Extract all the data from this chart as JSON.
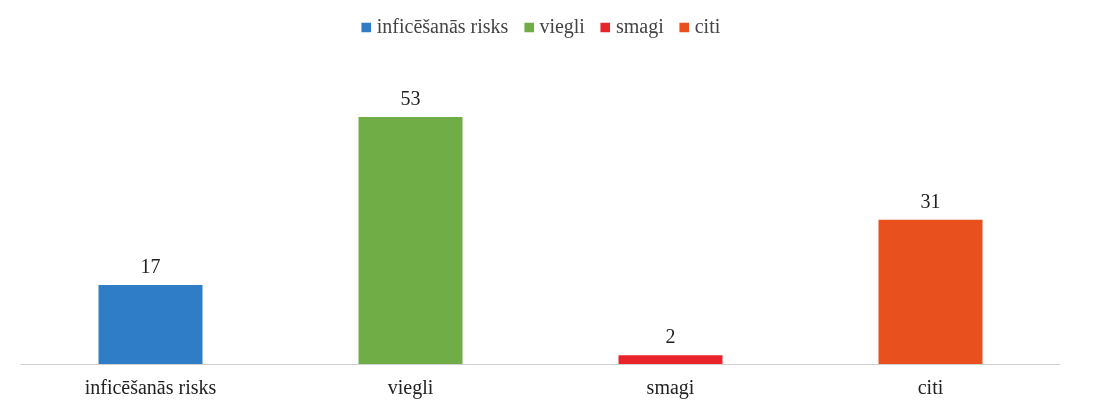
{
  "chart_data": {
    "type": "bar",
    "categories": [
      "inficēšanās risks",
      "viegli",
      "smagi",
      "citi"
    ],
    "series": [
      {
        "name": "inficēšanās risks",
        "color": "#2e7dc6",
        "values": [
          17,
          null,
          null,
          null
        ]
      },
      {
        "name": "viegli",
        "color": "#70ad47",
        "values": [
          null,
          53,
          null,
          null
        ]
      },
      {
        "name": "smagi",
        "color": "#e8232a",
        "values": [
          null,
          null,
          2,
          null
        ]
      },
      {
        "name": "citi",
        "color": "#e8501e",
        "values": [
          null,
          null,
          null,
          31
        ]
      }
    ],
    "data_labels": true,
    "legend": "top"
  }
}
